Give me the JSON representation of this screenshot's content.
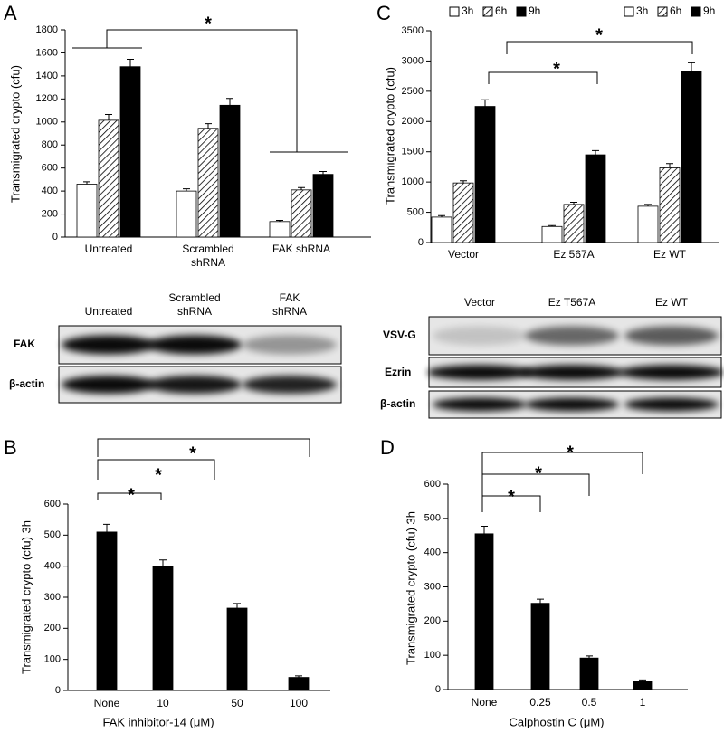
{
  "chart_data": [
    {
      "type": "bar",
      "panel": "A",
      "ylabel": "Transmigrated crypto (cfu)",
      "categories": [
        "Untreated",
        "Scrambled shRNA",
        "FAK shRNA"
      ],
      "series": [
        {
          "name": "3h",
          "color": "#ffffff",
          "values": [
            460,
            400,
            135
          ],
          "errors": [
            20,
            20,
            10
          ]
        },
        {
          "name": "6h",
          "color": "#ffffff",
          "hatch": true,
          "values": [
            1015,
            945,
            410
          ],
          "errors": [
            50,
            40,
            20
          ]
        },
        {
          "name": "9h",
          "color": "#000000",
          "values": [
            1480,
            1145,
            545
          ],
          "errors": [
            65,
            60,
            25
          ]
        }
      ],
      "ylim": [
        0,
        1800
      ],
      "yticks": [
        0,
        200,
        400,
        600,
        800,
        1000,
        1200,
        1400,
        1600,
        1800
      ],
      "annotations": [
        "*"
      ]
    },
    {
      "type": "bar",
      "panel": "B",
      "ylabel": "Transmigrated crypto (cfu) 3h",
      "xlabel": "FAK inhibitor-14 (μM)",
      "categories": [
        "None",
        "10",
        "50",
        "100"
      ],
      "color": "#000000",
      "values": [
        510,
        400,
        265,
        42
      ],
      "errors": [
        25,
        20,
        15,
        5
      ],
      "ylim": [
        0,
        600
      ],
      "yticks": [
        0,
        100,
        200,
        300,
        400,
        500,
        600
      ],
      "annotations": [
        "*",
        "*",
        "*"
      ]
    },
    {
      "type": "bar",
      "panel": "C",
      "ylabel": "Transmigrated crypto (cfu)",
      "categories": [
        "Vector",
        "Ez 567A",
        "Ez WT"
      ],
      "series": [
        {
          "name": "3h",
          "color": "#ffffff",
          "values": [
            420,
            265,
            600
          ],
          "errors": [
            25,
            15,
            30
          ]
        },
        {
          "name": "6h",
          "color": "#ffffff",
          "hatch": true,
          "values": [
            985,
            630,
            1235
          ],
          "errors": [
            35,
            35,
            70
          ]
        },
        {
          "name": "9h",
          "color": "#000000",
          "values": [
            2250,
            1450,
            2830
          ],
          "errors": [
            110,
            70,
            140
          ]
        }
      ],
      "ylim": [
        0,
        3500
      ],
      "yticks": [
        0,
        500,
        1000,
        1500,
        2000,
        2500,
        3000,
        3500
      ],
      "annotations": [
        "*",
        "*"
      ]
    },
    {
      "type": "bar",
      "panel": "D",
      "ylabel": "Transmigrated crypto (cfu) 3h",
      "xlabel": "Calphostin C (μM)",
      "categories": [
        "None",
        "0.25",
        "0.5",
        "1"
      ],
      "color": "#000000",
      "values": [
        455,
        252,
        92,
        25
      ],
      "errors": [
        22,
        12,
        6,
        3
      ],
      "ylim": [
        0,
        600
      ],
      "yticks": [
        0,
        100,
        200,
        300,
        400,
        500,
        600
      ],
      "annotations": [
        "*",
        "*",
        "*"
      ]
    }
  ],
  "blots": [
    {
      "columns": [
        "Untreated",
        "Scrambled shRNA",
        "FAK shRNA"
      ],
      "rows": [
        "FAK",
        "β-actin"
      ]
    },
    {
      "columns": [
        "Vector",
        "Ez T567A",
        "Ez WT"
      ],
      "rows": [
        "VSV-G",
        "Ezrin",
        "β-actin"
      ]
    }
  ]
}
